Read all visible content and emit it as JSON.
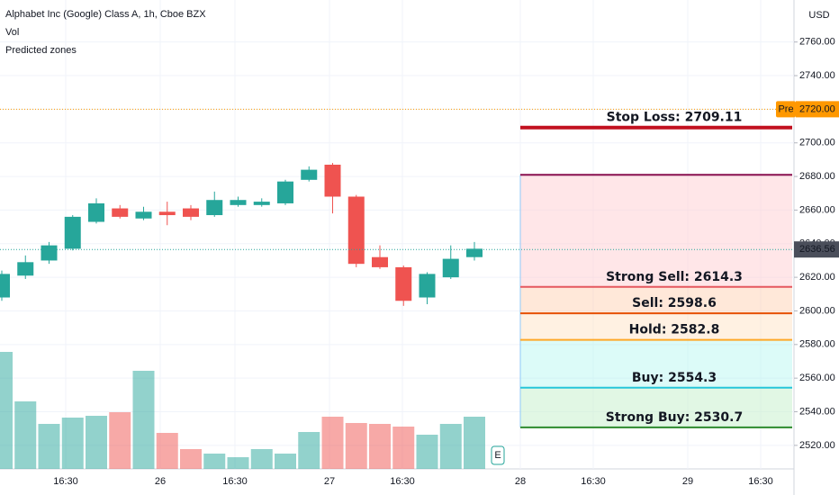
{
  "chart_data": {
    "type": "candlestick",
    "title": "Alphabet Inc (Google) Class A, 1h, Cboe BZX",
    "legend": [
      "Vol",
      "Predicted zones"
    ],
    "currency": "USD",
    "open": [
      2608,
      2621,
      2630,
      2637,
      2653,
      2661,
      2655,
      2659,
      2661,
      2657,
      2663,
      2663,
      2664,
      2678,
      2687,
      2668,
      2632,
      2626,
      2608,
      2620,
      2632
    ],
    "high": [
      2624,
      2633,
      2641,
      2657,
      2667,
      2663,
      2662,
      2665,
      2663,
      2671,
      2668,
      2667,
      2678,
      2686,
      2688,
      2669,
      2639,
      2627,
      2623,
      2639,
      2641
    ],
    "low": [
      2606,
      2619,
      2628,
      2636,
      2652,
      2655,
      2654,
      2651,
      2654,
      2656,
      2662,
      2662,
      2663,
      2677,
      2658,
      2626,
      2625,
      2603,
      2604,
      2619,
      2630
    ],
    "close": [
      2622,
      2629,
      2639,
      2656,
      2664,
      2656,
      2659,
      2657,
      2656,
      2666,
      2666,
      2665,
      2677,
      2684,
      2668,
      2628,
      2626,
      2606,
      2622,
      2631,
      2637
    ],
    "volume": [
      130,
      75,
      50,
      57,
      59,
      63,
      109,
      40,
      22,
      17,
      13,
      22,
      17,
      41,
      58,
      51,
      50,
      47,
      38,
      50,
      58
    ],
    "up_color": "#26a69a",
    "down_color": "#ef5350",
    "x_labels": [
      "16:30",
      "26",
      "16:30",
      "27",
      "16:30",
      "28",
      "16:30",
      "29",
      "16:30"
    ],
    "ylim": [
      2506,
      2785
    ],
    "yticks": [
      {
        "value": 2520,
        "label": "2520.00"
      },
      {
        "value": 2540,
        "label": "2540.00"
      },
      {
        "value": 2560,
        "label": "2560.00"
      },
      {
        "value": 2580,
        "label": "2580.00"
      },
      {
        "value": 2600,
        "label": "2600.00"
      },
      {
        "value": 2620,
        "label": "2620.00"
      },
      {
        "value": 2640,
        "label": "2640.00"
      },
      {
        "value": 2660,
        "label": "2660.00"
      },
      {
        "value": 2680,
        "label": "2680.00"
      },
      {
        "value": 2700,
        "label": "2700.00"
      },
      {
        "value": 2720,
        "label": "2720.00"
      },
      {
        "value": 2740,
        "label": "2740.00"
      },
      {
        "value": 2760,
        "label": "2760.00"
      }
    ],
    "grid": true,
    "last_price": 2636.56,
    "pre_price": {
      "value": 2720,
      "label": "2720.00"
    },
    "pre_tag": "Pre",
    "earnings_badge": "E",
    "zone_top": 2681,
    "zones": [
      {
        "label": "Stop Loss: 2709.11",
        "value": 2709.11,
        "color": "#c2101f",
        "text_color": "#333333"
      },
      {
        "label": "Strong Sell: 2614.3",
        "value": 2614.3,
        "color": "#e5575f",
        "text_color": "#e5575f"
      },
      {
        "label": "Sell: 2598.6",
        "value": 2598.6,
        "color": "#e65100",
        "text_color": "#e65100"
      },
      {
        "label": "Hold: 2582.8",
        "value": 2582.8,
        "color": "#ffa726",
        "text_color": "#f5a623"
      },
      {
        "label": "Buy: 2554.3",
        "value": 2554.3,
        "color": "#26c6da",
        "text_color": "#26c6da"
      },
      {
        "label": "Strong Buy: 2530.7",
        "value": 2530.7,
        "color": "#2e8b2e",
        "text_color": "#1f8a1f"
      }
    ]
  }
}
